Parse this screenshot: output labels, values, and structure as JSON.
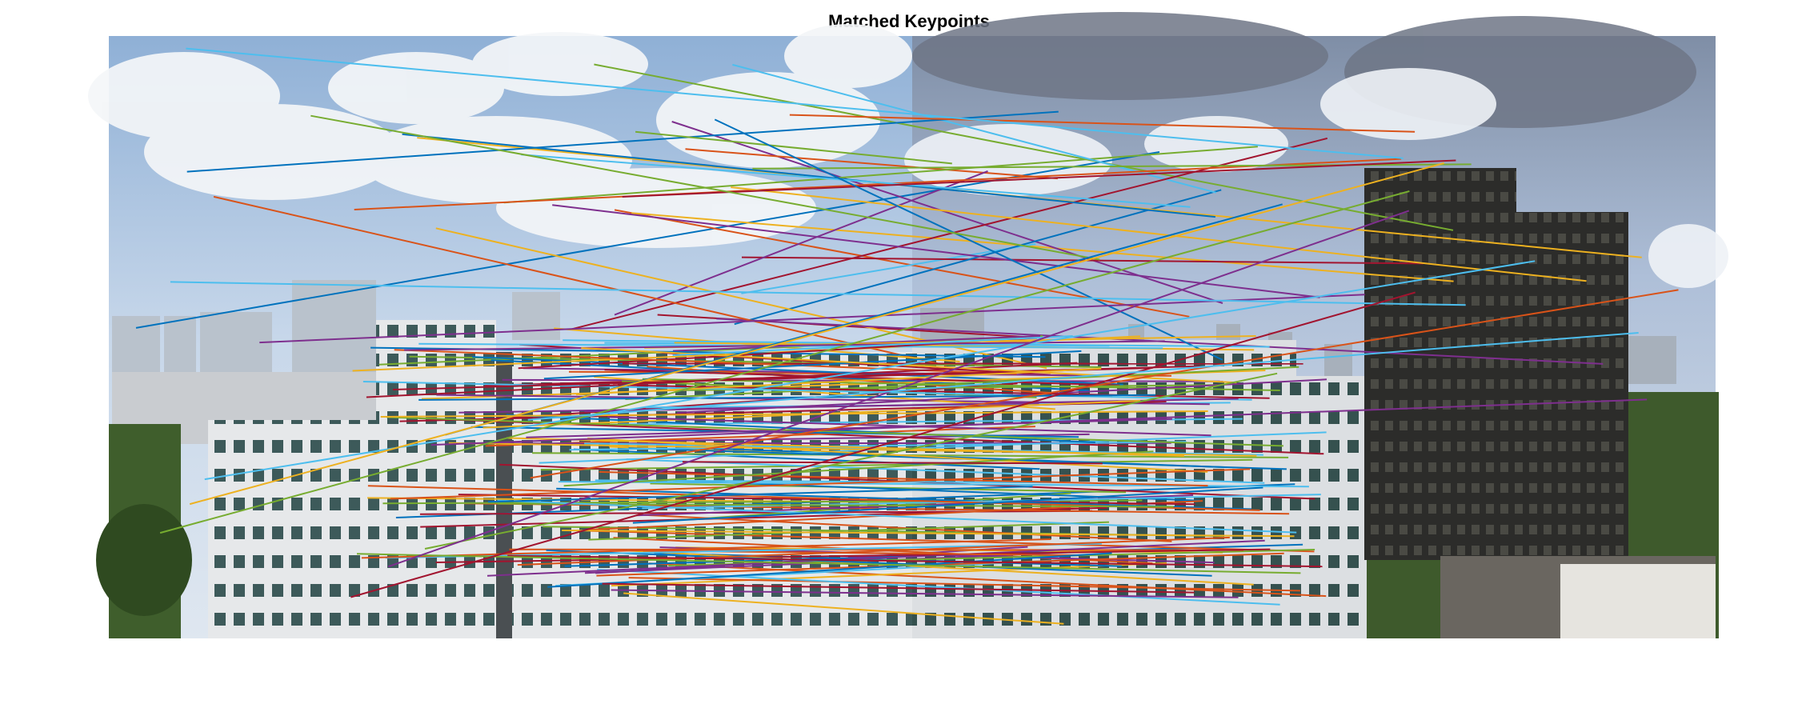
{
  "title": "Matched Keypoints",
  "match_palette": [
    "#0072BD",
    "#D95319",
    "#EDB120",
    "#7E2F8E",
    "#77AC30",
    "#4DBEEE",
    "#A2142F"
  ],
  "image_pair": {
    "left_image": "city-skyline-photo-left",
    "right_image": "city-skyline-photo-right"
  }
}
